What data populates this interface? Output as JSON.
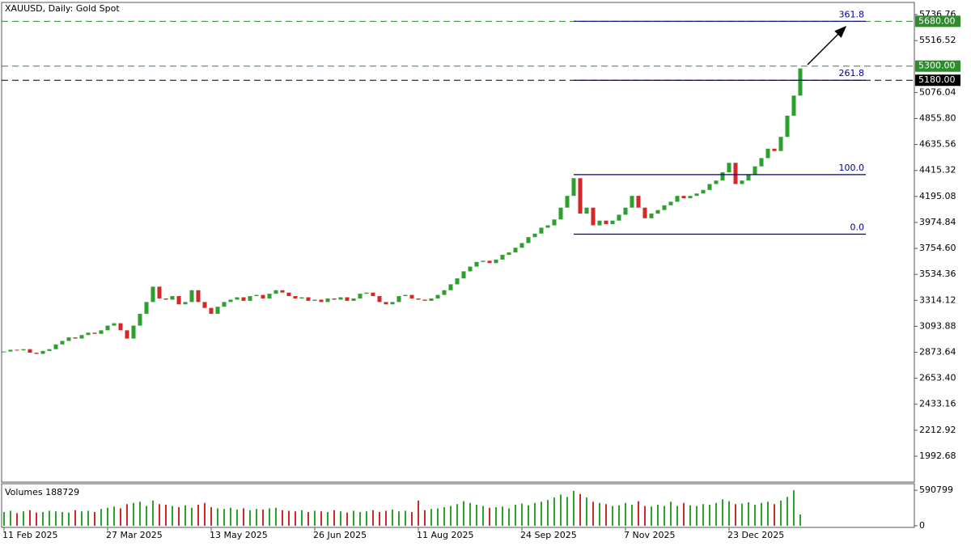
{
  "chart_data": [
    {
      "type": "candlestick",
      "title": "XAUUSD, Daily:  Gold Spot",
      "categories": [
        "11 Feb 2025",
        null,
        null,
        null,
        null,
        null,
        null,
        null,
        null,
        null,
        null,
        null,
        null,
        null,
        null,
        null,
        "27 Mar 2025",
        null,
        null,
        null,
        null,
        null,
        null,
        null,
        null,
        null,
        null,
        null,
        null,
        null,
        null,
        null,
        "13 May 2025",
        null,
        null,
        null,
        null,
        null,
        null,
        null,
        null,
        null,
        null,
        null,
        null,
        null,
        null,
        null,
        "26 Jun 2025",
        null,
        null,
        null,
        null,
        null,
        null,
        null,
        null,
        null,
        null,
        null,
        null,
        null,
        null,
        null,
        "11 Aug 2025",
        null,
        null,
        null,
        null,
        null,
        null,
        null,
        null,
        null,
        null,
        null,
        null,
        null,
        null,
        null,
        "24 Sep 2025",
        null,
        null,
        null,
        null,
        null,
        null,
        null,
        null,
        null,
        null,
        null,
        null,
        null,
        null,
        null,
        "7 Nov 2025",
        null,
        null,
        null,
        null,
        null,
        null,
        null,
        null,
        null,
        null,
        null,
        null,
        null,
        null,
        null,
        "23 Dec 2025",
        null,
        null,
        null,
        null,
        null,
        null,
        null,
        null,
        null,
        null,
        null
      ],
      "close": [
        2880,
        2895,
        2890,
        2900,
        2870,
        2860,
        2885,
        2900,
        2940,
        2970,
        3000,
        2990,
        3020,
        3040,
        3030,
        3060,
        3100,
        3120,
        3060,
        2990,
        3100,
        3200,
        3300,
        3430,
        3330,
        3320,
        3350,
        3280,
        3300,
        3400,
        3300,
        3250,
        3200,
        3260,
        3300,
        3320,
        3340,
        3310,
        3350,
        3360,
        3330,
        3370,
        3400,
        3380,
        3350,
        3330,
        3340,
        3310,
        3320,
        3300,
        3330,
        3320,
        3340,
        3310,
        3330,
        3370,
        3380,
        3350,
        3300,
        3280,
        3300,
        3350,
        3360,
        3330,
        3320,
        3310,
        3330,
        3360,
        3400,
        3450,
        3500,
        3560,
        3600,
        3640,
        3650,
        3630,
        3660,
        3700,
        3720,
        3760,
        3800,
        3850,
        3880,
        3930,
        3950,
        4000,
        4100,
        4200,
        4350,
        4050,
        4100,
        3950,
        3990,
        3960,
        3990,
        4040,
        4100,
        4200,
        4100,
        4010,
        4050,
        4080,
        4120,
        4150,
        4200,
        4180,
        4200,
        4220,
        4250,
        4300,
        4330,
        4400,
        4480,
        4300,
        4330,
        4380,
        4450,
        4520,
        4600,
        4580,
        4700,
        4880,
        5050,
        5280
      ],
      "up_color": "#2ca02c",
      "down_color": "#d62728",
      "ylim": [
        1773,
        5840
      ],
      "yticks": [
        {
          "value": 1992.68,
          "label": "1992.68"
        },
        {
          "value": 2212.92,
          "label": "2212.92"
        },
        {
          "value": 2433.16,
          "label": "2433.16"
        },
        {
          "value": 2653.4,
          "label": "2653.40"
        },
        {
          "value": 2873.64,
          "label": "2873.64"
        },
        {
          "value": 3093.88,
          "label": "3093.88"
        },
        {
          "value": 3314.12,
          "label": "3314.12"
        },
        {
          "value": 3534.36,
          "label": "3534.36"
        },
        {
          "value": 3754.6,
          "label": "3754.60"
        },
        {
          "value": 3974.84,
          "label": "3974.84"
        },
        {
          "value": 4195.08,
          "label": "4195.08"
        },
        {
          "value": 4415.32,
          "label": "4415.32"
        },
        {
          "value": 4635.56,
          "label": "4635.56"
        },
        {
          "value": 4855.8,
          "label": "4855.80"
        },
        {
          "value": 5076.04,
          "label": "5076.04"
        },
        {
          "value": 5516.52,
          "label": "5516.52"
        },
        {
          "value": 5736.76,
          "label": "5736.76"
        }
      ],
      "levels": [
        {
          "value": 5680,
          "label": "5680.00",
          "color": "#2e8b2e"
        },
        {
          "value": 5300,
          "label": "5300.00",
          "color": "#2e8b2e"
        },
        {
          "value": 5180,
          "label": "5180.00",
          "color": "#000000"
        }
      ],
      "fib": {
        "color": "#00008b",
        "levels": [
          {
            "value": 0,
            "label": "0.0",
            "price": 3875
          },
          {
            "value": 100,
            "label": "100.0",
            "price": 4380
          },
          {
            "value": 261.8,
            "label": "261.8",
            "price": 5180
          },
          {
            "value": 361.8,
            "label": "361.8",
            "price": 5680
          }
        ]
      }
    },
    {
      "type": "bar",
      "title": "Volumes 188729",
      "values": [
        230000,
        250000,
        210000,
        240000,
        260000,
        220000,
        230000,
        250000,
        240000,
        230000,
        220000,
        260000,
        240000,
        250000,
        230000,
        280000,
        300000,
        320000,
        290000,
        360000,
        380000,
        400000,
        330000,
        420000,
        360000,
        350000,
        330000,
        310000,
        340000,
        300000,
        350000,
        380000,
        310000,
        290000,
        280000,
        300000,
        270000,
        290000,
        260000,
        280000,
        270000,
        290000,
        300000,
        260000,
        250000,
        240000,
        260000,
        230000,
        250000,
        240000,
        230000,
        260000,
        240000,
        220000,
        250000,
        230000,
        240000,
        260000,
        230000,
        250000,
        270000,
        240000,
        250000,
        230000,
        420000,
        260000,
        280000,
        290000,
        310000,
        330000,
        360000,
        410000,
        380000,
        350000,
        330000,
        300000,
        310000,
        320000,
        290000,
        350000,
        370000,
        340000,
        380000,
        400000,
        430000,
        470000,
        520000,
        480000,
        580000,
        530000,
        470000,
        400000,
        380000,
        360000,
        330000,
        340000,
        380000,
        350000,
        410000,
        330000,
        320000,
        350000,
        330000,
        400000,
        330000,
        380000,
        340000,
        330000,
        360000,
        350000,
        380000,
        440000,
        410000,
        360000,
        370000,
        390000,
        350000,
        380000,
        400000,
        360000,
        420000,
        480000,
        590000,
        188729
      ],
      "ylim": [
        0,
        700000
      ],
      "yticks": [
        0,
        590799
      ]
    }
  ]
}
